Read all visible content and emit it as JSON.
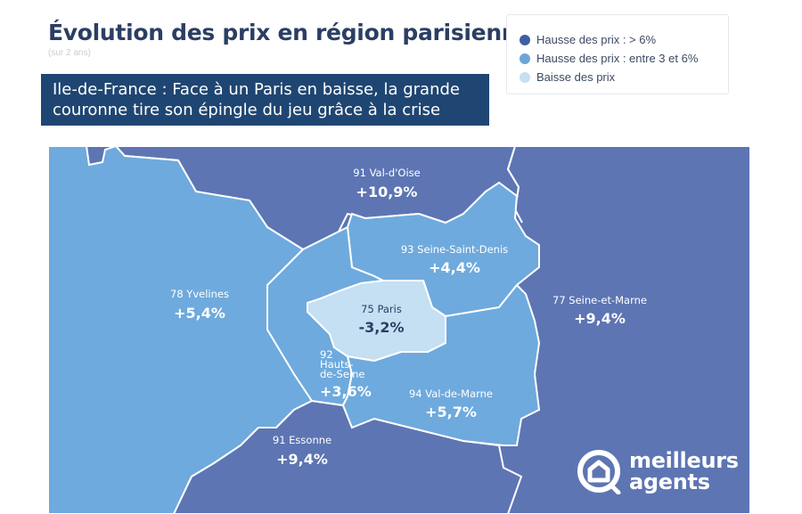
{
  "header": {
    "title": "Évolution des prix en région parisienne",
    "subtitle": "(sur 2 ans)"
  },
  "headline": {
    "line1": "Ile-de-France : Face à un Paris en baisse, la grande",
    "line2": "couronne tire son épingle du jeu grâce à la crise"
  },
  "legend": [
    {
      "label": "Hausse des prix : > 6%",
      "color": "#3f5ea4"
    },
    {
      "label": "Hausse des prix : entre 3 et 6%",
      "color": "#6ba6d8"
    },
    {
      "label": "Baisse des prix",
      "color": "#c5dff3"
    }
  ],
  "colors": {
    "high": "#5d75b3",
    "medium": "#6eaadd",
    "low": "#c5dff3",
    "border": "#ffffff",
    "headline_bg": "#1f4672",
    "title": "#2b3e63"
  },
  "departments": {
    "val_doise": {
      "name": "91 Val-d'Oise",
      "value": "+10,9%",
      "category": "high"
    },
    "yvelines": {
      "name": "78 Yvelines",
      "value": "+5,4%",
      "category": "medium"
    },
    "seine_saint_denis": {
      "name": "93 Seine-Saint-Denis",
      "value": "+4,4%",
      "category": "medium"
    },
    "paris": {
      "name": "75 Paris",
      "value": "-3,2%",
      "category": "low"
    },
    "hauts_de_seine": {
      "name_lines": [
        "92",
        "Hauts-",
        "de-Seine"
      ],
      "value": "+3,6%",
      "category": "medium"
    },
    "seine_et_marne": {
      "name": "77 Seine-et-Marne",
      "value": "+9,4%",
      "category": "high"
    },
    "val_de_marne": {
      "name": "94 Val-de-Marne",
      "value": "+5,7%",
      "category": "medium"
    },
    "essonne": {
      "name": "91 Essonne",
      "value": "+9,4%",
      "category": "high"
    }
  },
  "brand": {
    "line1": "meilleurs",
    "line2": "agents",
    "logo_icon": "house-circle-icon"
  }
}
